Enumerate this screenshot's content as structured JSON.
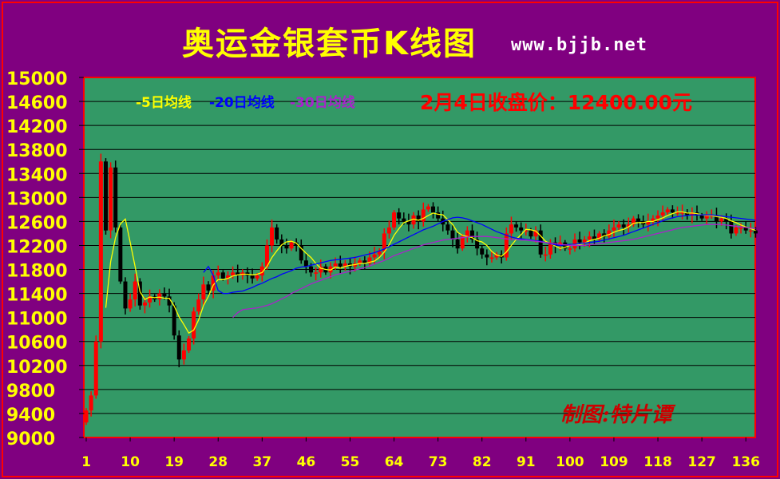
{
  "header": {
    "title": "奥运金银套币K线图",
    "site": "www.bjjb.net"
  },
  "legend": {
    "ma5": "-5日均线",
    "ma20": "-20日均线",
    "ma30": "-30日均线"
  },
  "close_note": "2月4日收盘价：12400.00元",
  "watermark": "制图:特片谭",
  "colors": {
    "background": "#800080",
    "plot": "#339966",
    "up": "#ff0000",
    "down": "#000000",
    "ma5": "#ffff00",
    "ma20": "#0000ff",
    "ma30": "#aa22cc",
    "axis_text": "#ffff00",
    "close_note": "#ff0000",
    "watermark": "#cc0000"
  },
  "chart_data": {
    "type": "candlestick",
    "title": "奥运金银套币K线图",
    "xlabel": "",
    "ylabel": "",
    "xlim": [
      1,
      138
    ],
    "ylim": [
      9000,
      15000
    ],
    "y_ticks": [
      15000,
      14600,
      14200,
      13800,
      13400,
      13000,
      12600,
      12200,
      11800,
      11400,
      11000,
      10600,
      10200,
      9800,
      9400,
      9000
    ],
    "x_ticks": [
      1,
      10,
      19,
      28,
      37,
      46,
      55,
      64,
      73,
      82,
      91,
      100,
      109,
      118,
      127,
      136
    ],
    "grid": "horizontal",
    "closes": [
      9450,
      9700,
      10600,
      13600,
      12450,
      13500,
      12500,
      11600,
      11150,
      11300,
      11600,
      11200,
      11250,
      11350,
      11300,
      11400,
      11350,
      11200,
      10700,
      10300,
      10450,
      10650,
      11100,
      11300,
      11550,
      11450,
      11700,
      11750,
      11650,
      11700,
      11750,
      11700,
      11750,
      11700,
      11650,
      11700,
      11850,
      12200,
      12500,
      12300,
      12200,
      12150,
      12250,
      12200,
      11950,
      11850,
      11750,
      11750,
      11850,
      11750,
      11850,
      11900,
      11850,
      11900,
      11850,
      11900,
      11950,
      11900,
      12000,
      12050,
      12100,
      12400,
      12500,
      12750,
      12650,
      12600,
      12550,
      12700,
      12600,
      12800,
      12850,
      12750,
      12650,
      12550,
      12450,
      12300,
      12150,
      12350,
      12450,
      12300,
      12150,
      12050,
      12000,
      12000,
      12050,
      12000,
      12400,
      12550,
      12500,
      12450,
      12450,
      12350,
      12450,
      12050,
      12050,
      12250,
      12200,
      12250,
      12150,
      12150,
      12300,
      12250,
      12300,
      12350,
      12300,
      12400,
      12350,
      12450,
      12500,
      12550,
      12500,
      12550,
      12650,
      12600,
      12550,
      12600,
      12650,
      12700,
      12750,
      12800,
      12750,
      12750,
      12750,
      12700,
      12750,
      12700,
      12650,
      12700,
      12700,
      12600,
      12650,
      12600,
      12400,
      12500,
      12500,
      12450,
      12450,
      12400
    ],
    "series": [
      {
        "name": "5日均线",
        "values": [
          null,
          null,
          null,
          null,
          11160,
          11930,
          12330,
          12560,
          12640,
          12250,
          11850,
          11430,
          11300,
          11340,
          11330,
          11340,
          11320,
          11320,
          11190,
          11010,
          10880,
          10740,
          10790,
          10960,
          11200,
          11350,
          11540,
          11630,
          11630,
          11650,
          11690,
          11710,
          11720,
          11720,
          11710,
          11720,
          11750,
          11850,
          12000,
          12110,
          12210,
          12260,
          12270,
          12240,
          12150,
          12070,
          12000,
          11900,
          11820,
          11800,
          11790,
          11840,
          11820,
          11850,
          11870,
          11880,
          11900,
          11900,
          11920,
          11940,
          12000,
          12090,
          12210,
          12370,
          12480,
          12580,
          12610,
          12640,
          12620,
          12650,
          12700,
          12740,
          12720,
          12710,
          12630,
          12550,
          12420,
          12370,
          12350,
          12330,
          12280,
          12260,
          12200,
          12100,
          12040,
          12020,
          12090,
          12200,
          12300,
          12380,
          12470,
          12460,
          12440,
          12360,
          12270,
          12230,
          12190,
          12150,
          12170,
          12200,
          12210,
          12210,
          12240,
          12280,
          12300,
          12320,
          12360,
          12380,
          12420,
          12450,
          12470,
          12510,
          12570,
          12580,
          12580,
          12600,
          12600,
          12630,
          12660,
          12700,
          12730,
          12760,
          12760,
          12740,
          12740,
          12730,
          12710,
          12700,
          12700,
          12680,
          12670,
          12650,
          12610,
          12580,
          12540,
          12510,
          12480,
          12450
        ]
      },
      {
        "name": "20日均线",
        "values": [
          null,
          null,
          null,
          null,
          null,
          null,
          null,
          null,
          null,
          null,
          null,
          null,
          null,
          null,
          null,
          null,
          null,
          null,
          null,
          null,
          null,
          null,
          null,
          null,
          11750,
          11850,
          11700,
          11450,
          11400,
          11400,
          11420,
          11430,
          11440,
          11470,
          11500,
          11540,
          11570,
          11610,
          11650,
          11680,
          11720,
          11750,
          11780,
          11820,
          11840,
          11850,
          11870,
          11890,
          11910,
          11930,
          11950,
          11960,
          11970,
          11980,
          11990,
          12000,
          12020,
          12040,
          12060,
          12080,
          12110,
          12140,
          12180,
          12220,
          12260,
          12300,
          12340,
          12380,
          12420,
          12460,
          12490,
          12520,
          12560,
          12600,
          12630,
          12660,
          12670,
          12660,
          12640,
          12610,
          12580,
          12550,
          12510,
          12470,
          12430,
          12400,
          12370,
          12340,
          12320,
          12310,
          12300,
          12290,
          12280,
          12270,
          12250,
          12230,
          12210,
          12200,
          12210,
          12220,
          12220,
          12230,
          12240,
          12250,
          12260,
          12270,
          12290,
          12310,
          12330,
          12350,
          12370,
          12400,
          12430,
          12460,
          12490,
          12520,
          12550,
          12580,
          12610,
          12640,
          12660,
          12680,
          12690,
          12700,
          12710,
          12710,
          12710,
          12710,
          12710,
          12700,
          12690,
          12680,
          12670,
          12660,
          12650,
          12640,
          12630,
          12620
        ]
      },
      {
        "name": "30日均线",
        "values": [
          null,
          null,
          null,
          null,
          null,
          null,
          null,
          null,
          null,
          null,
          null,
          null,
          null,
          null,
          null,
          null,
          null,
          null,
          null,
          null,
          null,
          null,
          null,
          null,
          null,
          null,
          null,
          null,
          null,
          null,
          11000,
          11080,
          11130,
          11140,
          11150,
          11160,
          11180,
          11200,
          11230,
          11270,
          11310,
          11350,
          11400,
          11440,
          11480,
          11520,
          11560,
          11590,
          11620,
          11650,
          11680,
          11710,
          11730,
          11750,
          11770,
          11790,
          11810,
          11830,
          11860,
          11890,
          11920,
          11950,
          11990,
          12030,
          12060,
          12090,
          12120,
          12150,
          12180,
          12210,
          12230,
          12250,
          12270,
          12290,
          12300,
          12310,
          12320,
          12330,
          12340,
          12350,
          12350,
          12350,
          12350,
          12340,
          12330,
          12320,
          12310,
          12300,
          12300,
          12290,
          12290,
          12280,
          12270,
          12260,
          12250,
          12240,
          12230,
          12220,
          12210,
          12200,
          12200,
          12200,
          12200,
          12210,
          12220,
          12230,
          12240,
          12250,
          12260,
          12270,
          12280,
          12290,
          12300,
          12320,
          12340,
          12360,
          12380,
          12400,
          12420,
          12440,
          12460,
          12480,
          12500,
          12510,
          12520,
          12530,
          12540,
          12550,
          12550,
          12550,
          12550,
          12540,
          12530,
          12520,
          12510,
          12500,
          12490,
          12480
        ]
      }
    ],
    "annotations": [
      "2月4日收盘价：12400.00元",
      "制图:特片谭"
    ]
  }
}
